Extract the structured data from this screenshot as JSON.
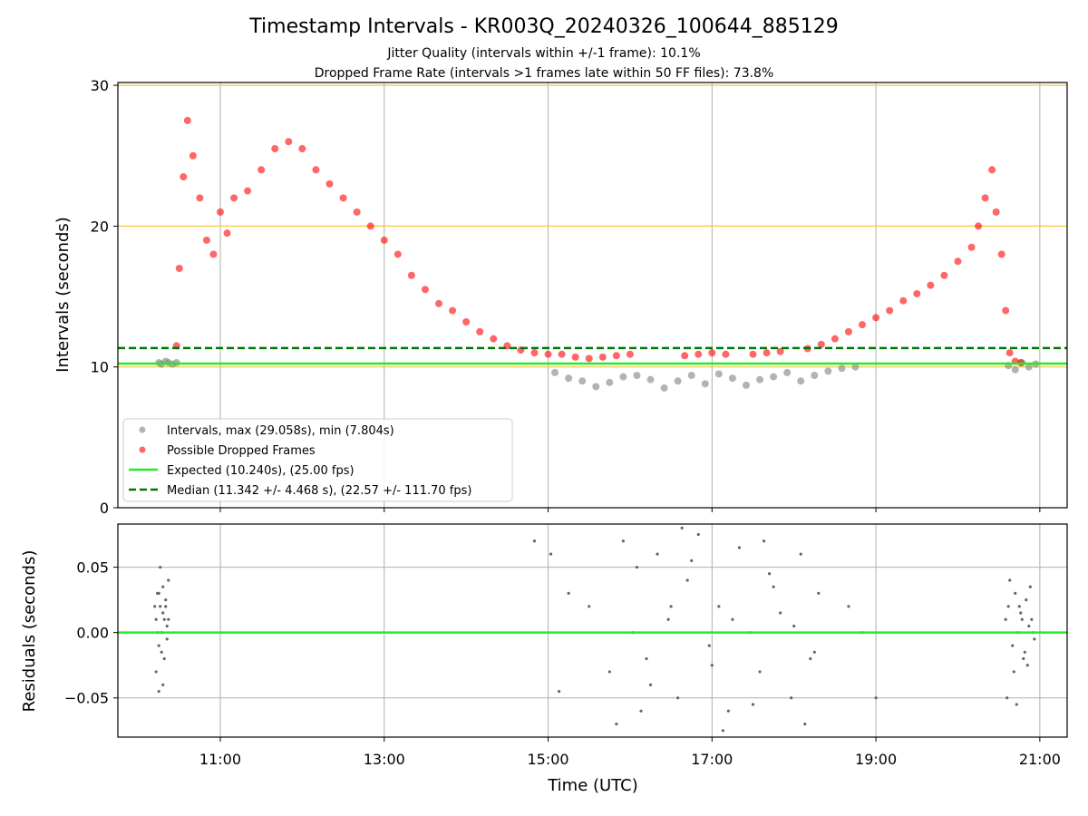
{
  "title": "Timestamp Intervals - KR003Q_20240326_100644_885129",
  "subtitle_1": "Jitter Quality (intervals within +/-1 frame): 10.1%",
  "subtitle_2": "Dropped Frame Rate (intervals >1 frames late within 50 FF files): 73.8%",
  "colors": {
    "intervals": "#808080",
    "dropped": "#ff0000",
    "expected": "#22ee22",
    "median": "#007700",
    "reference_lines": "#f5c842",
    "grid": "#b0b0b0"
  },
  "chart_data": [
    {
      "type": "scatter",
      "panel": "intervals",
      "ylabel": "Intervals (seconds)",
      "xlim": [
        "09:45",
        "21:20"
      ],
      "ylim": [
        0,
        30.2
      ],
      "x_ticks": [
        "11:00",
        "13:00",
        "15:00",
        "17:00",
        "19:00",
        "21:00"
      ],
      "y_ticks": [
        0,
        10,
        20,
        30
      ],
      "grid": true,
      "reference_lines": [
        10,
        20,
        30
      ],
      "legend": {
        "placement": "lower-left",
        "entries": [
          "Intervals, max (29.058s), min (7.804s)",
          "Possible Dropped Frames",
          "Expected (10.240s), (25.00 fps)",
          "Median (11.342 +/- 4.468 s), (22.57 +/- 111.70 fps)"
        ]
      },
      "series": [
        {
          "name": "Intervals, max (29.058s), min (7.804s)",
          "x": [
            "10:15",
            "10:17",
            "10:20",
            "10:22",
            "10:25",
            "10:28",
            "15:05",
            "15:15",
            "15:25",
            "15:35",
            "15:45",
            "15:55",
            "16:05",
            "16:15",
            "16:25",
            "16:35",
            "16:45",
            "16:55",
            "17:05",
            "17:15",
            "17:25",
            "17:35",
            "17:45",
            "17:55",
            "18:05",
            "18:15",
            "18:25",
            "18:35",
            "18:45",
            "20:37",
            "20:42",
            "20:47",
            "20:52",
            "20:57"
          ],
          "values": [
            10.3,
            10.2,
            10.4,
            10.3,
            10.2,
            10.3,
            9.6,
            9.2,
            9.0,
            8.6,
            8.9,
            9.3,
            9.4,
            9.1,
            8.5,
            9.0,
            9.4,
            8.8,
            9.5,
            9.2,
            8.7,
            9.1,
            9.3,
            9.6,
            9.0,
            9.4,
            9.7,
            9.9,
            10.0,
            10.1,
            9.8,
            10.3,
            10.0,
            10.2
          ]
        },
        {
          "name": "Possible Dropped Frames",
          "x": [
            "10:28",
            "10:30",
            "10:33",
            "10:36",
            "10:40",
            "10:45",
            "10:50",
            "10:55",
            "11:00",
            "11:05",
            "11:10",
            "11:20",
            "11:30",
            "11:40",
            "11:50",
            "12:00",
            "12:10",
            "12:20",
            "12:30",
            "12:40",
            "12:50",
            "13:00",
            "13:10",
            "13:20",
            "13:30",
            "13:40",
            "13:50",
            "14:00",
            "14:10",
            "14:20",
            "14:30",
            "14:40",
            "14:50",
            "15:00",
            "15:10",
            "15:20",
            "15:30",
            "15:40",
            "15:50",
            "16:00",
            "16:40",
            "16:50",
            "17:00",
            "17:10",
            "17:30",
            "17:40",
            "17:50",
            "18:10",
            "18:20",
            "18:30",
            "18:40",
            "18:50",
            "19:00",
            "19:10",
            "19:20",
            "19:30",
            "19:40",
            "19:50",
            "20:00",
            "20:10",
            "20:15",
            "20:20",
            "20:25",
            "20:28",
            "20:32",
            "20:35",
            "20:38",
            "20:42",
            "20:46"
          ],
          "values": [
            11.5,
            17.0,
            23.5,
            27.5,
            25.0,
            22.0,
            19.0,
            18.0,
            21.0,
            19.5,
            22.0,
            22.5,
            24.0,
            25.5,
            26.0,
            25.5,
            24.0,
            23.0,
            22.0,
            21.0,
            20.0,
            19.0,
            18.0,
            16.5,
            15.5,
            14.5,
            14.0,
            13.2,
            12.5,
            12.0,
            11.5,
            11.2,
            11.0,
            10.9,
            10.9,
            10.7,
            10.6,
            10.7,
            10.8,
            10.9,
            10.8,
            10.9,
            11.0,
            10.9,
            10.9,
            11.0,
            11.1,
            11.3,
            11.6,
            12.0,
            12.5,
            13.0,
            13.5,
            14.0,
            14.7,
            15.2,
            15.8,
            16.5,
            17.5,
            18.5,
            20.0,
            22.0,
            24.0,
            21.0,
            18.0,
            14.0,
            11.0,
            10.4,
            10.3
          ]
        },
        {
          "name": "Expected (10.240s), (25.00 fps)",
          "constant": 10.24
        },
        {
          "name": "Median (11.342 +/- 4.468 s), (22.57 +/- 111.70 fps)",
          "constant": 11.342
        }
      ]
    },
    {
      "type": "scatter",
      "panel": "residuals",
      "xlabel": "Time (UTC)",
      "ylabel": "Residuals (seconds)",
      "xlim": [
        "09:45",
        "21:20"
      ],
      "ylim": [
        -0.08,
        0.083
      ],
      "x_ticks": [
        "11:00",
        "13:00",
        "15:00",
        "17:00",
        "19:00",
        "21:00"
      ],
      "y_ticks": [
        "0.05",
        "0.00",
        "−0.05"
      ],
      "grid": true,
      "zero_line": 0.0,
      "series": [
        {
          "x": [
            "10:12",
            "10:13",
            "10:14",
            "10:15",
            "10:16",
            "10:17",
            "10:18",
            "10:19",
            "10:20",
            "10:21",
            "10:22",
            "10:13",
            "10:15",
            "10:17",
            "10:19",
            "10:21",
            "10:14",
            "10:16",
            "10:18",
            "10:20",
            "10:22",
            "10:15",
            "10:18",
            "14:50",
            "15:02",
            "15:08",
            "15:15",
            "15:30",
            "15:45",
            "15:55",
            "16:05",
            "16:12",
            "16:20",
            "16:28",
            "16:35",
            "16:42",
            "16:50",
            "16:58",
            "17:05",
            "17:12",
            "17:20",
            "17:28",
            "17:35",
            "17:42",
            "17:50",
            "17:58",
            "18:05",
            "18:12",
            "18:18",
            "16:02",
            "16:15",
            "16:30",
            "16:45",
            "17:00",
            "17:15",
            "17:30",
            "17:45",
            "18:00",
            "18:15",
            "15:50",
            "16:08",
            "16:38",
            "17:08",
            "17:38",
            "18:08",
            "18:40",
            "18:50",
            "19:00",
            "20:35",
            "20:37",
            "20:40",
            "20:42",
            "20:44",
            "20:46",
            "20:48",
            "20:50",
            "20:52",
            "20:54",
            "20:56",
            "20:38",
            "20:41",
            "20:45",
            "20:49",
            "20:53",
            "20:36",
            "20:43",
            "20:47",
            "20:51",
            "20:55"
          ],
          "values": [
            0.02,
            0.01,
            0.03,
            -0.01,
            0.02,
            0.0,
            0.015,
            -0.02,
            0.025,
            0.005,
            0.04,
            -0.03,
            0.03,
            -0.015,
            0.01,
            -0.005,
            0.0,
            0.05,
            -0.04,
            0.02,
            0.01,
            -0.045,
            0.035,
            0.07,
            0.06,
            -0.045,
            0.03,
            0.02,
            -0.03,
            0.07,
            0.05,
            -0.02,
            0.06,
            0.01,
            -0.05,
            0.04,
            0.075,
            -0.01,
            0.02,
            -0.06,
            0.065,
            0.0,
            -0.03,
            0.045,
            0.015,
            -0.05,
            0.06,
            -0.02,
            0.03,
            0.0,
            -0.04,
            0.02,
            0.055,
            -0.025,
            0.01,
            -0.055,
            0.035,
            0.005,
            -0.015,
            -0.07,
            -0.06,
            0.08,
            -0.075,
            0.07,
            -0.07,
            0.02,
            0.0,
            -0.05,
            0.01,
            0.02,
            -0.01,
            0.03,
            0.0,
            0.015,
            -0.02,
            0.025,
            0.005,
            0.01,
            -0.005,
            0.04,
            -0.03,
            0.02,
            -0.015,
            0.035,
            -0.05,
            -0.055,
            0.01,
            -0.025,
            0.0
          ]
        }
      ]
    }
  ]
}
